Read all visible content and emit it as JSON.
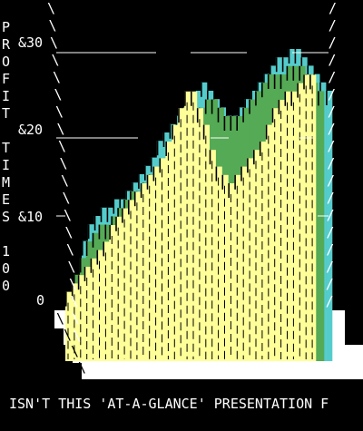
{
  "chart_data": {
    "type": "area",
    "title": "",
    "ylabel": "PROFIT TIMES 100",
    "ylabel_letters": [
      "P",
      "R",
      "O",
      "F",
      "I",
      "T",
      "",
      "T",
      "I",
      "M",
      "E",
      "S",
      "",
      "1",
      "0",
      "0"
    ],
    "y_ticks": [
      "0",
      "&10",
      "&20",
      "&30"
    ],
    "y_tick_values": [
      0,
      10,
      20,
      30
    ],
    "ylim": [
      0,
      35
    ],
    "x": [
      1,
      2,
      3,
      4,
      5,
      6,
      7,
      8,
      9,
      10,
      11,
      12,
      13,
      14,
      15,
      16,
      17,
      18,
      19,
      20,
      21,
      22,
      23,
      24,
      25,
      26,
      27,
      28,
      29,
      30,
      31,
      32,
      33,
      34,
      35,
      36,
      37,
      38,
      39,
      40
    ],
    "series": [
      {
        "name": "",
        "color": "#ffff99",
        "values": [
          2,
          3,
          4,
          5,
          6,
          7,
          8,
          10,
          11,
          12,
          13,
          14,
          15,
          16,
          17,
          18,
          20,
          22,
          24,
          26,
          26,
          24,
          22,
          19,
          17,
          16,
          15,
          16,
          17,
          18,
          19,
          20,
          22,
          24,
          25,
          26,
          26,
          27,
          28,
          28
        ]
      },
      {
        "name": "",
        "color": "#55aa55",
        "values": [
          6,
          8,
          10,
          11,
          12,
          12,
          13,
          14,
          15,
          16,
          16,
          17,
          18,
          18,
          19,
          20,
          22,
          23,
          24,
          25,
          26,
          27,
          27,
          26,
          25,
          25,
          25,
          26,
          27,
          28,
          29,
          30,
          30,
          30,
          31,
          31,
          31,
          30,
          29,
          28
        ]
      },
      {
        "name": "",
        "color": "#55cccc",
        "values": [
          12,
          14,
          15,
          16,
          16,
          17,
          17,
          18,
          19,
          20,
          21,
          22,
          24,
          25,
          26,
          27,
          28,
          29,
          30,
          31,
          30,
          29,
          28,
          27,
          27,
          28,
          29,
          30,
          31,
          32,
          33,
          34,
          34,
          35,
          35,
          34,
          33,
          32,
          31,
          30
        ]
      }
    ],
    "grid": false,
    "legend": "none",
    "background": "#000000",
    "base_color": "#ffffff"
  },
  "caption": "ISN'T THIS 'AT-A-GLANCE' PRESENTATION F"
}
